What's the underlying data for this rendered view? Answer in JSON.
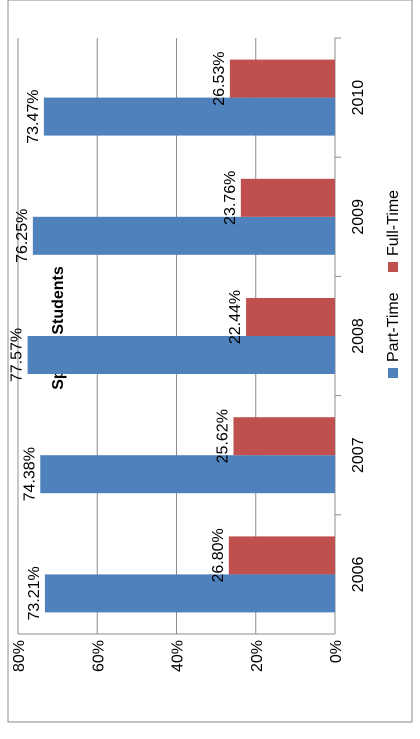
{
  "chart_data": {
    "type": "bar",
    "orientation": "horizontal",
    "title": "Spring Students",
    "categories": [
      "2006",
      "2007",
      "2008",
      "2009",
      "2010"
    ],
    "series": [
      {
        "name": "Part-Time",
        "color": "#4f81bd",
        "values": [
          73.21,
          74.38,
          77.57,
          76.25,
          73.47
        ],
        "labels": [
          "73.21%",
          "74.38%",
          "77.57%",
          "76.25%",
          "73.47%"
        ]
      },
      {
        "name": "Full-Time",
        "color": "#c0504d",
        "values": [
          26.8,
          25.62,
          22.44,
          23.76,
          26.53
        ],
        "labels": [
          "26.80%",
          "25.62%",
          "22.44%",
          "23.76%",
          "26.53%"
        ]
      }
    ],
    "ylim": [
      0,
      80
    ],
    "value_ticks": [
      "0%",
      "20%",
      "40%",
      "60%",
      "80%"
    ],
    "grid": true,
    "legend": "bottom"
  }
}
